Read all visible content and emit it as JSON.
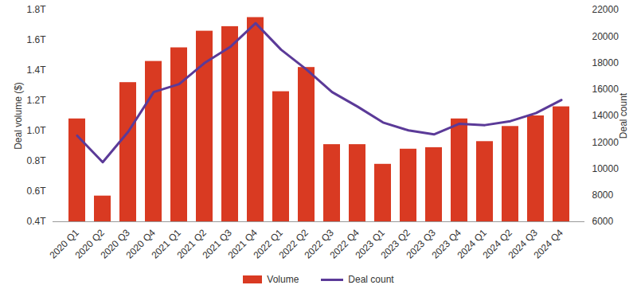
{
  "chart_data": {
    "type": "bar",
    "categories": [
      "2020 Q1",
      "2020 Q2",
      "2020 Q3",
      "2020 Q4",
      "2021 Q1",
      "2021 Q2",
      "2021 Q3",
      "2021 Q4",
      "2022 Q1",
      "2022 Q2",
      "2022 Q3",
      "2022 Q4",
      "2023 Q1",
      "2023 Q2",
      "2023 Q3",
      "2023 Q4",
      "2024 Q1",
      "2024 Q2",
      "2024 Q3",
      "2024 Q4"
    ],
    "y_label": "Deal volume ($)",
    "y2_label": "Deal count",
    "series": [
      {
        "name": "Volume",
        "type": "bar",
        "color": "#d93a22",
        "values": [
          1.08,
          0.57,
          1.32,
          1.46,
          1.55,
          1.66,
          1.69,
          1.75,
          1.26,
          1.42,
          0.91,
          0.91,
          0.78,
          0.88,
          0.89,
          1.08,
          0.93,
          1.03,
          1.1,
          1.16
        ]
      },
      {
        "name": "Deal count",
        "type": "line",
        "color": "#5b3a98",
        "axis": "y2",
        "values": [
          12500,
          10500,
          12800,
          15800,
          16400,
          18000,
          19200,
          21000,
          19000,
          17500,
          15800,
          14700,
          13500,
          12900,
          12600,
          13400,
          13300,
          13600,
          14200,
          15200
        ]
      }
    ],
    "ylim": [
      0.4,
      1.8
    ],
    "yticks": [
      {
        "value": 0.4,
        "label": "0.4T"
      },
      {
        "value": 0.6,
        "label": "0.6T"
      },
      {
        "value": 0.8,
        "label": "0.8T"
      },
      {
        "value": 1.0,
        "label": "1.0T"
      },
      {
        "value": 1.2,
        "label": "1.2T"
      },
      {
        "value": 1.4,
        "label": "1.4T"
      },
      {
        "value": 1.6,
        "label": "1.6T"
      },
      {
        "value": 1.8,
        "label": "1.8T"
      }
    ],
    "y2lim": [
      6000,
      22000
    ],
    "y2ticks": [
      6000,
      8000,
      10000,
      12000,
      14000,
      16000,
      18000,
      20000,
      22000
    ],
    "grid": false,
    "legend": "bottom"
  }
}
